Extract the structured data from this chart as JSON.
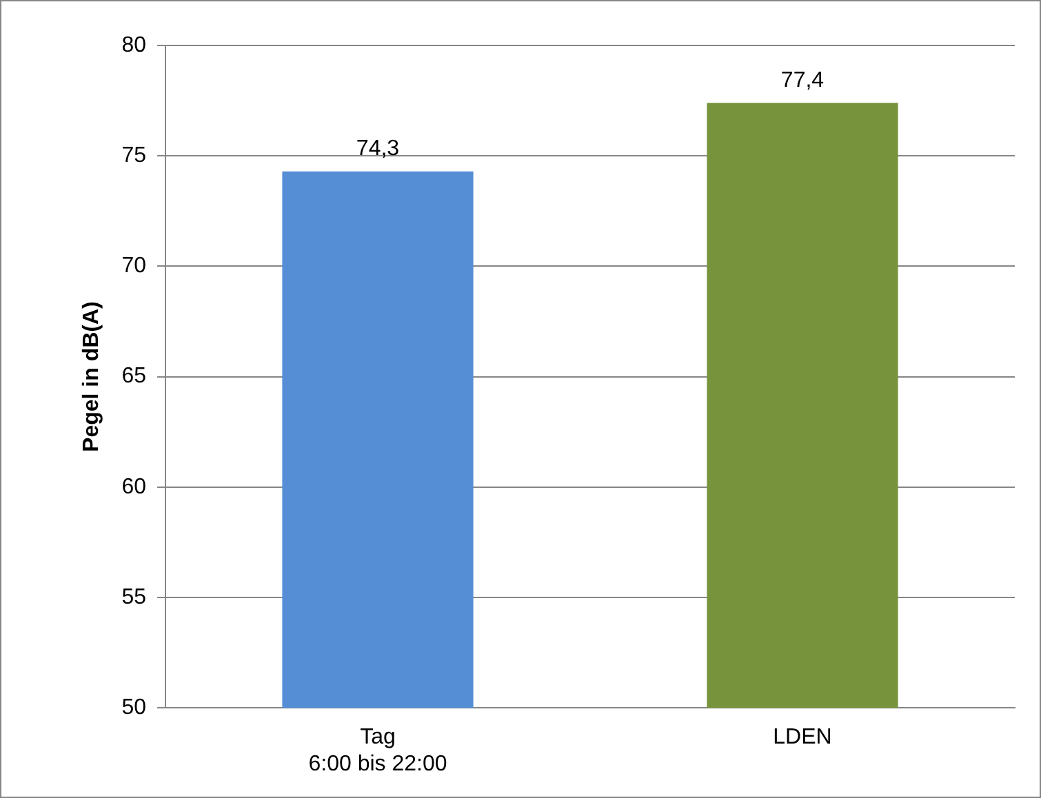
{
  "chart_data": {
    "type": "bar",
    "ylabel": "Pegel in dB(A)",
    "categories": [
      "Tag\n6:00 bis 22:00",
      "LDEN"
    ],
    "values": [
      74.3,
      77.4
    ],
    "colors": [
      "#558ed5",
      "#77933c"
    ],
    "value_labels": [
      "74,3",
      "77,4"
    ],
    "ylim": [
      50,
      80
    ],
    "yticks": [
      50,
      55,
      60,
      65,
      70,
      75,
      80
    ],
    "grid": "y",
    "legend": false
  }
}
